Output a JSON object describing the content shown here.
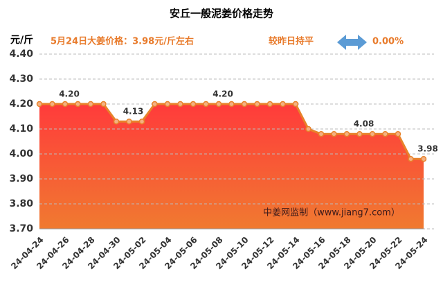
{
  "chart_data": {
    "type": "area",
    "title": "安丘一般泥姜价格走势",
    "y_label": "元/斤",
    "price_note": "5月24日大姜价格：3.98元/斤左右",
    "change_text": "较昨日持平",
    "change_value": "0.00%",
    "source": "中姜网监制（www.jiang7.com）",
    "categories": [
      "24-04-24",
      null,
      "24-04-26",
      null,
      "24-04-28",
      null,
      "24-04-30",
      null,
      "24-05-02",
      null,
      "24-05-04",
      null,
      "24-05-06",
      null,
      "24-05-08",
      null,
      "24-05-10",
      null,
      "24-05-12",
      null,
      "24-05-14",
      null,
      "24-05-16",
      null,
      "24-05-18",
      null,
      "24-05-20",
      null,
      "24-05-22",
      null,
      "24-05-24"
    ],
    "values": [
      4.2,
      4.2,
      4.2,
      4.2,
      4.2,
      4.2,
      4.13,
      4.13,
      4.13,
      4.2,
      4.2,
      4.2,
      4.2,
      4.2,
      4.2,
      4.2,
      4.2,
      4.2,
      4.2,
      4.2,
      4.2,
      4.1,
      4.08,
      4.08,
      4.08,
      4.08,
      4.08,
      4.08,
      4.08,
      3.98,
      3.98
    ],
    "value_labels": [
      null,
      null,
      "4.20",
      null,
      null,
      null,
      null,
      "4.13",
      null,
      null,
      null,
      null,
      null,
      null,
      "4.20",
      null,
      null,
      null,
      null,
      null,
      null,
      null,
      null,
      null,
      null,
      "4.08",
      null,
      null,
      null,
      null,
      "3.98"
    ],
    "color": "#e8822a",
    "fill_colors": [
      "#ff3b3b",
      "#f07a30"
    ],
    "ylim": [
      3.7,
      4.4
    ],
    "yticks": [
      {
        "value": 3.7,
        "label": "3.70"
      },
      {
        "value": 3.8,
        "label": "3.80"
      },
      {
        "value": 3.9,
        "label": "3.90"
      },
      {
        "value": 4.0,
        "label": "4.00"
      },
      {
        "value": 4.1,
        "label": "4.10"
      },
      {
        "value": 4.2,
        "label": "4.20"
      },
      {
        "value": 4.3,
        "label": "4.30"
      },
      {
        "value": 4.4,
        "label": "4.40"
      }
    ],
    "grid": true
  }
}
